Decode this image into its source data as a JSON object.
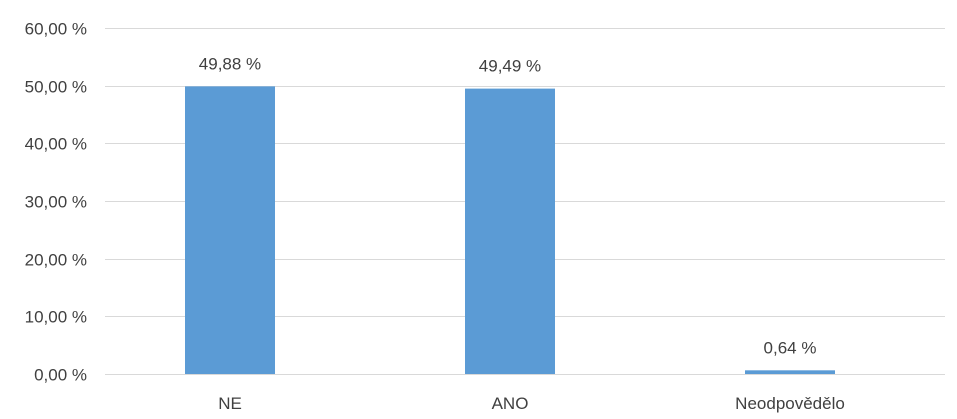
{
  "chart_data": {
    "type": "bar",
    "categories": [
      "NE",
      "ANO",
      "Neodpovědělo"
    ],
    "values": [
      49.88,
      49.49,
      0.64
    ],
    "data_labels": [
      "49,88 %",
      "49,49 %",
      "0,64 %"
    ],
    "ylim": [
      0,
      60
    ],
    "yticks": [
      0,
      10,
      20,
      30,
      40,
      50,
      60
    ],
    "ytick_labels": [
      "0,00 %",
      "10,00 %",
      "20,00 %",
      "30,00 %",
      "40,00 %",
      "50,00 %",
      "60,00 %"
    ],
    "grid": true,
    "legend": "none",
    "title": "",
    "xlabel": "",
    "ylabel": "",
    "colors": {
      "bar": "#5b9bd5",
      "grid": "#d9d9d9",
      "text": "#404040"
    }
  }
}
